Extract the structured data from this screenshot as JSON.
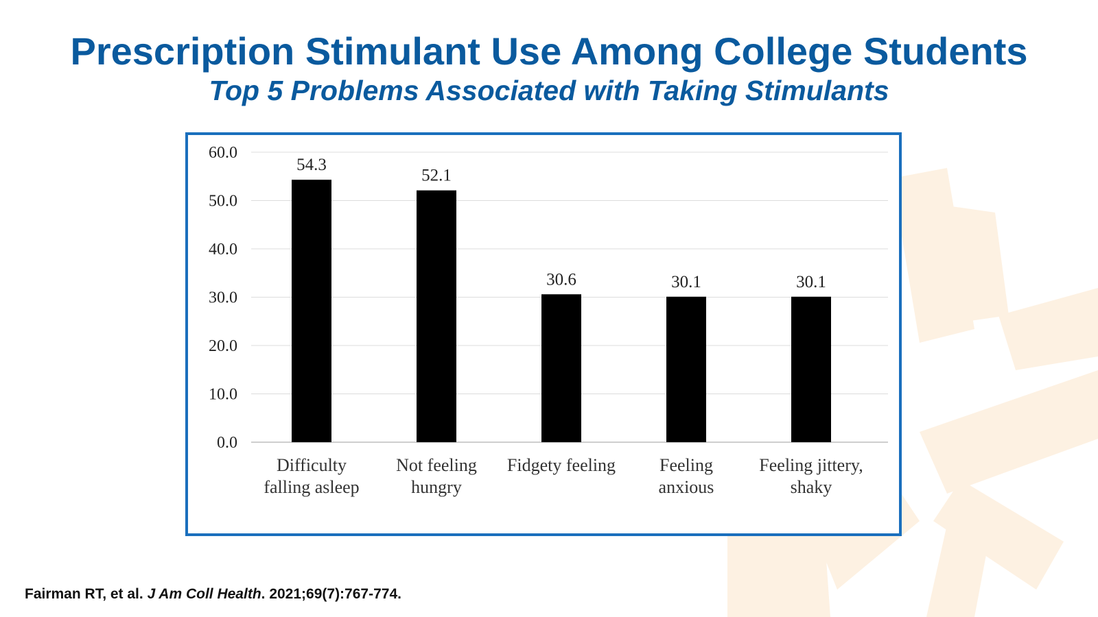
{
  "slide": {
    "title": "Prescription Stimulant Use Among College Students",
    "subtitle": "Top 5 Problems Associated with Taking Stimulants"
  },
  "citation": {
    "authors": "Fairman RT, et al.",
    "journal": "J Am Coll Health",
    "details": ". 2021;69(7):767-774."
  },
  "colors": {
    "title": "#0a5a9e",
    "frame": "#1a6fbd",
    "bars": "#000000",
    "decoration": "#fdf1e2"
  },
  "chart_data": {
    "type": "bar",
    "categories": [
      [
        "Difficulty",
        "falling asleep"
      ],
      [
        "Not feeling",
        "hungry"
      ],
      [
        "Fidgety feeling"
      ],
      [
        "Feeling",
        "anxious"
      ],
      [
        "Feeling jittery,",
        "shaky"
      ]
    ],
    "values": [
      54.3,
      52.1,
      30.6,
      30.1,
      30.1
    ],
    "value_labels": [
      "54.3",
      "52.1",
      "30.6",
      "30.1",
      "30.1"
    ],
    "ylim": [
      0,
      60
    ],
    "yticks": [
      "0.0",
      "10.0",
      "20.0",
      "30.0",
      "40.0",
      "50.0",
      "60.0"
    ],
    "grid": true,
    "legend": "none"
  }
}
